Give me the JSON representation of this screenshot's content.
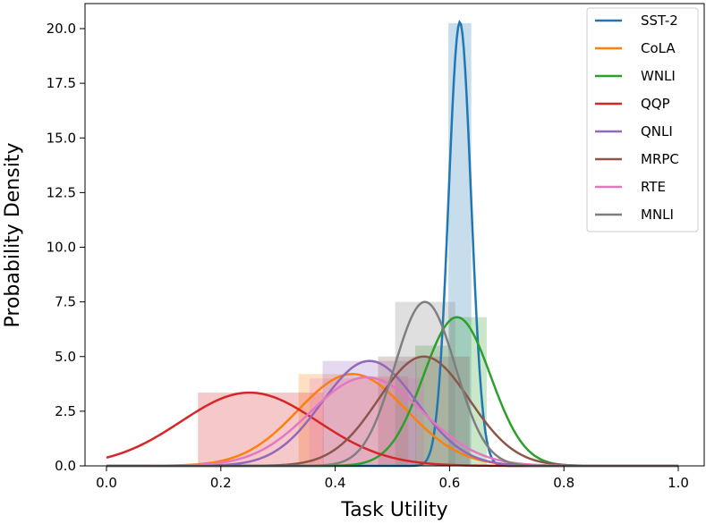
{
  "chart_data": {
    "type": "area",
    "xlabel": "Task Utility",
    "ylabel": "Probability Density",
    "xlim": [
      -0.02,
      1.05
    ],
    "ylim": [
      0,
      21.3
    ],
    "xticks": [
      "0.0",
      "0.2",
      "0.4",
      "0.6",
      "0.8",
      "1.0"
    ],
    "xtick_values": [
      0.0,
      0.2,
      0.4,
      0.6,
      0.8,
      1.0
    ],
    "yticks": [
      "0.0",
      "2.5",
      "5.0",
      "7.5",
      "10.0",
      "12.5",
      "15.0",
      "17.5",
      "20.0"
    ],
    "ytick_values": [
      0,
      2.5,
      5,
      7.5,
      10,
      12.5,
      15,
      17.5,
      20
    ],
    "grid": false,
    "legend_position": "top-right",
    "series": [
      {
        "name": "SST-2",
        "color": "#1f77b4",
        "mean": 0.618,
        "sd": 0.0197,
        "peak": 20.3,
        "hist_bins": [
          0.598,
          0.638
        ],
        "hist_height": 20.25
      },
      {
        "name": "CoLA",
        "color": "#ff7f0e",
        "mean": 0.43,
        "sd": 0.095,
        "peak": 4.2,
        "hist_bins": [
          0.336,
          0.432,
          0.528
        ],
        "hist_heights": [
          4.2,
          4.1
        ]
      },
      {
        "name": "WNLI",
        "color": "#2ca02c",
        "mean": 0.613,
        "sd": 0.0587,
        "peak": 6.8,
        "hist_bins": [
          0.54,
          0.6,
          0.665
        ],
        "hist_heights": [
          5.5,
          6.8
        ]
      },
      {
        "name": "QQP",
        "color": "#d62728",
        "mean": 0.25,
        "sd": 0.1196,
        "peak": 3.35,
        "hist_bins": [
          0.16,
          0.27,
          0.38
        ],
        "hist_heights": [
          3.35,
          3.35
        ]
      },
      {
        "name": "QNLI",
        "color": "#9467bd",
        "mean": 0.46,
        "sd": 0.083,
        "peak": 4.8,
        "hist_bins": [
          0.378,
          0.46,
          0.542
        ],
        "hist_heights": [
          4.8,
          4.8
        ]
      },
      {
        "name": "MRPC",
        "color": "#8c564b",
        "mean": 0.555,
        "sd": 0.0797,
        "peak": 5.0,
        "hist_bins": [
          0.475,
          0.555,
          0.635
        ],
        "hist_heights": [
          5.0,
          5.0
        ]
      },
      {
        "name": "RTE",
        "color": "#e377c2",
        "mean": 0.455,
        "sd": 0.0987,
        "peak": 4.05,
        "hist_bins": [
          0.355,
          0.455,
          0.555
        ],
        "hist_heights": [
          4.0,
          4.0
        ]
      },
      {
        "name": "MNLI",
        "color": "#7f7f7f",
        "mean": 0.557,
        "sd": 0.0532,
        "peak": 7.5,
        "hist_bins": [
          0.505,
          0.557,
          0.61
        ],
        "hist_heights": [
          7.5,
          7.5
        ]
      }
    ]
  }
}
